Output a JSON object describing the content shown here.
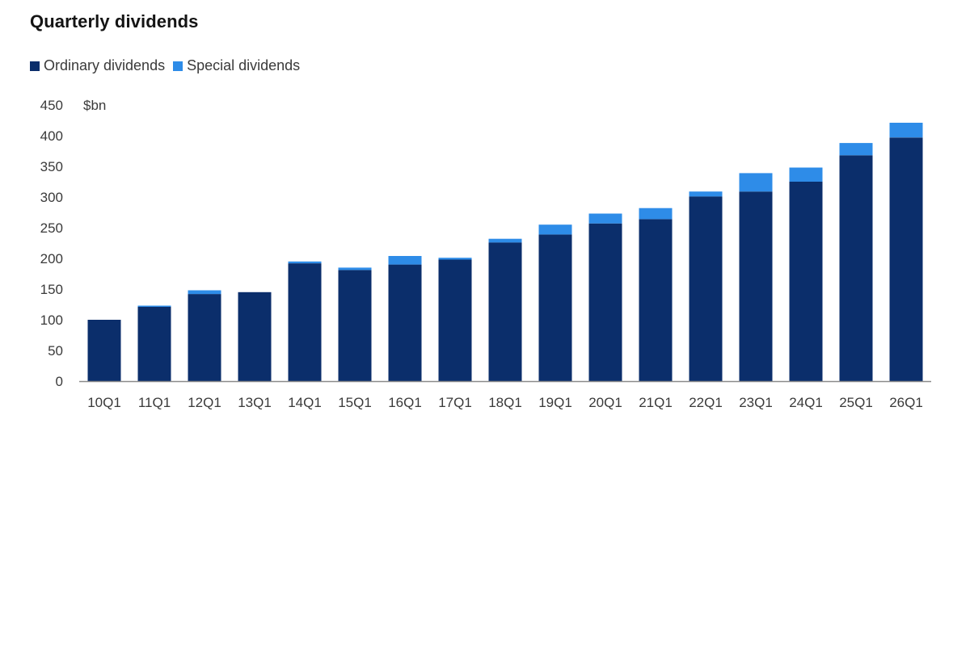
{
  "chart_data": {
    "type": "bar",
    "stacked": true,
    "title": "Quarterly dividends",
    "ylabel": "$bn",
    "ylim": [
      0,
      450
    ],
    "yticks": [
      0,
      50,
      100,
      150,
      200,
      250,
      300,
      350,
      400,
      450
    ],
    "grid": false,
    "legend_position": "top-left",
    "categories": [
      "10Q1",
      "11Q1",
      "12Q1",
      "13Q1",
      "14Q1",
      "15Q1",
      "16Q1",
      "17Q1",
      "18Q1",
      "19Q1",
      "20Q1",
      "21Q1",
      "22Q1",
      "23Q1",
      "24Q1",
      "25Q1",
      "26Q1"
    ],
    "series": [
      {
        "name": "Ordinary dividends",
        "color": "#0b2e6b",
        "values": [
          100,
          121,
          142,
          145,
          192,
          181,
          190,
          198,
          226,
          239,
          257,
          264,
          301,
          309,
          325,
          368,
          397
        ]
      },
      {
        "name": "Special dividends",
        "color": "#2e8ce8",
        "values": [
          0,
          2,
          6,
          0,
          3,
          4,
          14,
          3,
          6,
          16,
          16,
          18,
          8,
          30,
          23,
          20,
          24
        ]
      }
    ]
  }
}
